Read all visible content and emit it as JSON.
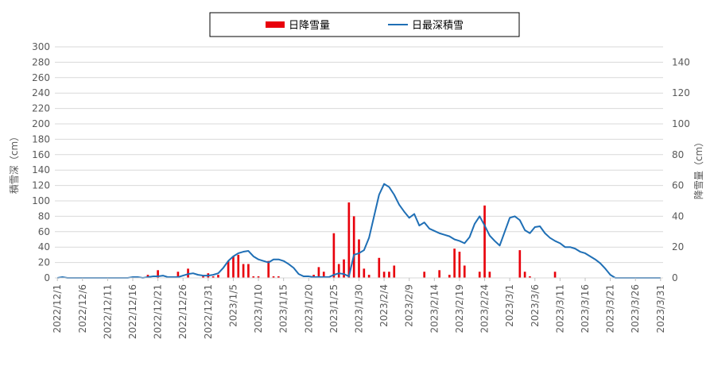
{
  "chart_data": {
    "type": "bar+line",
    "legend": {
      "placement": "top",
      "entries": [
        {
          "label": "日降雪量",
          "kind": "bar",
          "color": "#e8000b"
        },
        {
          "label": "日最深積雪",
          "kind": "line",
          "color": "#1f6fb5"
        }
      ]
    },
    "y_left": {
      "label": "積雪深（cm）",
      "min": 0,
      "max": 300,
      "step": 20
    },
    "y_right": {
      "label": "降雪量（cm）",
      "min": 0,
      "max": 150,
      "step": 20
    },
    "grid": "horizontal",
    "x_start": "2022-12-01",
    "x_end": "2023-03-31",
    "x_tick_labels": [
      "2022/12/1",
      "2022/12/6",
      "2022/12/11",
      "2022/12/16",
      "2022/12/21",
      "2022/12/26",
      "2022/12/31",
      "2023/1/5",
      "2023/1/10",
      "2023/1/15",
      "2023/1/20",
      "2023/1/25",
      "2023/1/30",
      "2023/2/4",
      "2023/2/9",
      "2023/2/14",
      "2023/2/19",
      "2023/2/24",
      "2023/3/1",
      "2023/3/6",
      "2023/3/11",
      "2023/3/16",
      "2023/3/21",
      "2023/3/26",
      "2023/3/31"
    ],
    "series": [
      {
        "name": "日降雪量",
        "type": "bar",
        "axis": "right",
        "color": "#e8000b",
        "values": [
          0,
          0,
          0,
          0,
          0,
          0,
          0,
          0,
          0,
          0,
          0,
          0,
          0,
          0,
          0,
          0,
          0,
          0,
          2,
          0,
          5,
          0,
          0,
          0,
          4,
          0,
          6,
          0,
          0,
          1,
          3,
          1,
          2,
          0,
          11,
          14,
          15,
          9,
          9,
          1,
          1,
          0,
          11,
          1,
          1,
          0,
          0,
          0,
          0,
          0,
          0,
          2,
          7,
          4,
          1,
          29,
          9,
          12,
          49,
          40,
          25,
          6,
          2,
          0,
          13,
          4,
          4,
          8,
          0,
          0,
          0,
          0,
          0,
          4,
          0,
          0,
          5,
          0,
          2,
          19,
          17,
          8,
          0,
          0,
          4,
          47,
          4,
          0,
          0,
          0,
          0,
          0,
          18,
          4,
          1,
          0,
          0,
          0,
          0,
          4,
          0,
          0,
          0,
          0,
          0,
          0,
          0,
          0,
          0,
          0,
          0,
          0,
          0,
          0,
          0,
          0,
          0,
          0,
          0,
          0,
          0
        ]
      },
      {
        "name": "日最深積雪",
        "type": "line",
        "axis": "left",
        "color": "#1f6fb5",
        "values": [
          0,
          1,
          0,
          0,
          0,
          0,
          0,
          0,
          0,
          0,
          0,
          0,
          0,
          0,
          0,
          1,
          1,
          0,
          1,
          2,
          2,
          3,
          1,
          1,
          1,
          3,
          5,
          6,
          4,
          3,
          3,
          4,
          6,
          13,
          22,
          28,
          32,
          34,
          35,
          28,
          24,
          22,
          20,
          24,
          24,
          22,
          18,
          13,
          5,
          2,
          2,
          1,
          1,
          1,
          1,
          4,
          6,
          5,
          2,
          30,
          32,
          36,
          52,
          80,
          108,
          122,
          118,
          108,
          95,
          86,
          78,
          83,
          68,
          72,
          64,
          61,
          58,
          56,
          54,
          50,
          48,
          45,
          53,
          70,
          80,
          68,
          55,
          48,
          42,
          60,
          78,
          80,
          75,
          62,
          58,
          66,
          67,
          58,
          52,
          48,
          45,
          40,
          40,
          38,
          34,
          32,
          28,
          24,
          19,
          12,
          4,
          0,
          0,
          0,
          0,
          0,
          0,
          0,
          0,
          0,
          0
        ]
      }
    ]
  }
}
